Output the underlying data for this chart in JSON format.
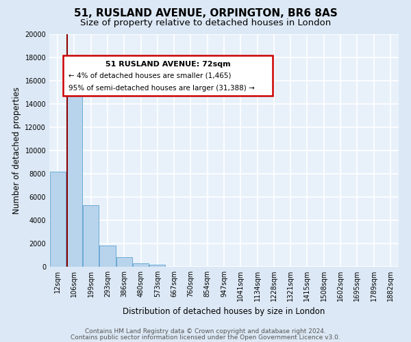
{
  "title": "51, RUSLAND AVENUE, ORPINGTON, BR6 8AS",
  "subtitle": "Size of property relative to detached houses in London",
  "xlabel": "Distribution of detached houses by size in London",
  "ylabel": "Number of detached properties",
  "categories": [
    "12sqm",
    "106sqm",
    "199sqm",
    "293sqm",
    "386sqm",
    "480sqm",
    "573sqm",
    "667sqm",
    "760sqm",
    "854sqm",
    "947sqm",
    "1041sqm",
    "1134sqm",
    "1228sqm",
    "1321sqm",
    "1415sqm",
    "1508sqm",
    "1602sqm",
    "1695sqm",
    "1789sqm",
    "1882sqm"
  ],
  "values": [
    8200,
    16600,
    5300,
    1850,
    800,
    280,
    180,
    0,
    0,
    0,
    0,
    0,
    0,
    0,
    0,
    0,
    0,
    0,
    0,
    0,
    0
  ],
  "bar_color": "#b8d4ec",
  "bar_edge_color": "#6aaad4",
  "property_line_color": "#8b0000",
  "property_line_x": 0.55,
  "ylim": [
    0,
    20000
  ],
  "yticks": [
    0,
    2000,
    4000,
    6000,
    8000,
    10000,
    12000,
    14000,
    16000,
    18000,
    20000
  ],
  "annotation_title": "51 RUSLAND AVENUE: 72sqm",
  "annotation_line1": "← 4% of detached houses are smaller (1,465)",
  "annotation_line2": "95% of semi-detached houses are larger (31,388) →",
  "annotation_box_color": "#ffffff",
  "annotation_box_edge_color": "#cc0000",
  "footer_line1": "Contains HM Land Registry data © Crown copyright and database right 2024.",
  "footer_line2": "Contains public sector information licensed under the Open Government Licence v3.0.",
  "bg_color": "#dce8f5",
  "plot_bg_color": "#e8f1fa",
  "grid_color": "#ffffff",
  "title_fontsize": 11,
  "subtitle_fontsize": 9.5,
  "axis_label_fontsize": 8.5,
  "tick_fontsize": 7,
  "footer_fontsize": 6.5
}
